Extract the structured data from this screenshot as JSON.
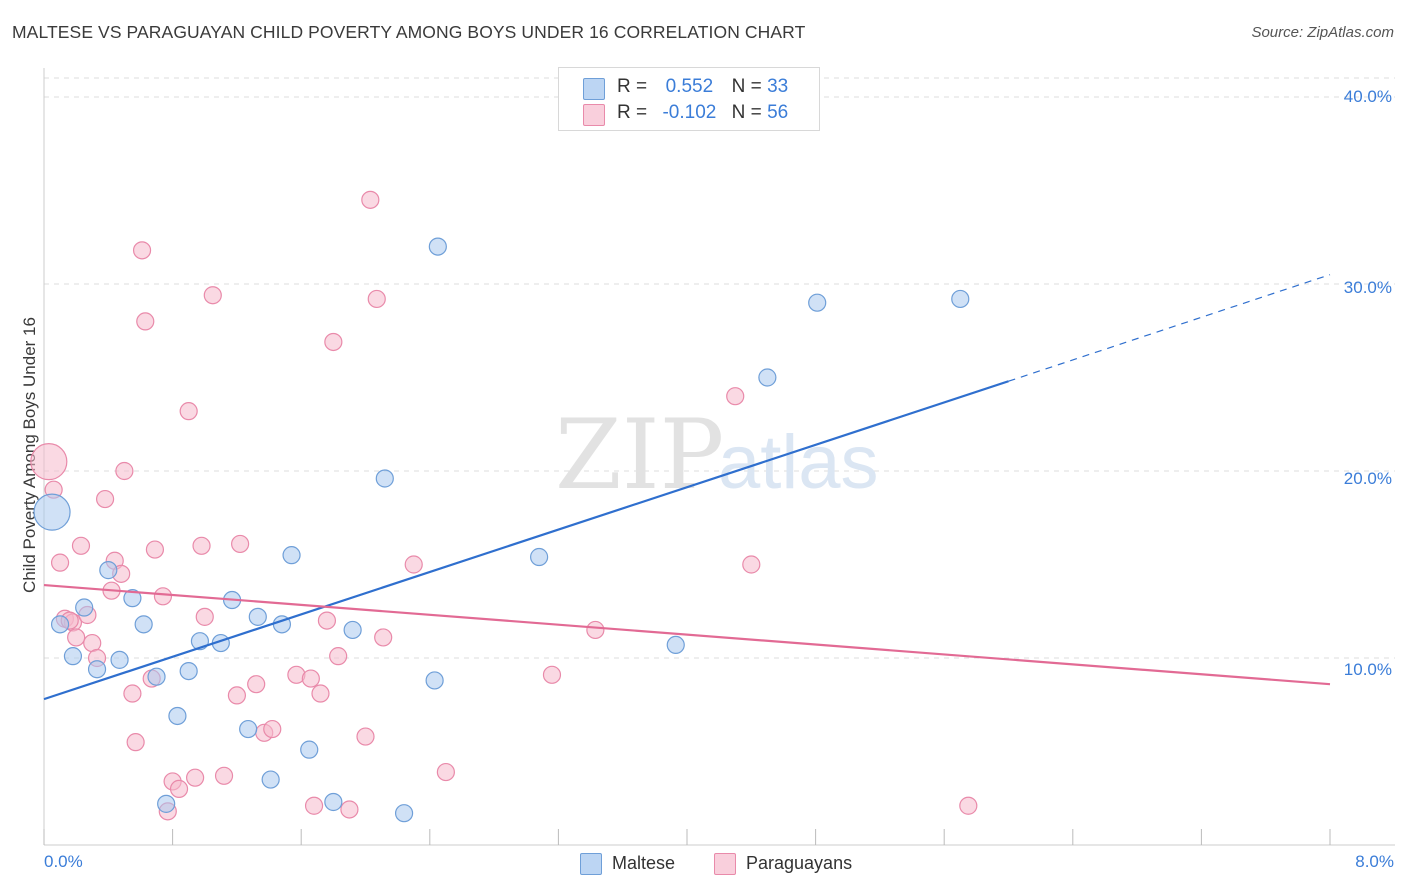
{
  "title": "MALTESE VS PARAGUAYAN CHILD POVERTY AMONG BOYS UNDER 16 CORRELATION CHART",
  "source": "Source: ZipAtlas.com",
  "watermark": {
    "zip": "ZIP",
    "atlas": "atlas"
  },
  "legend_top": {
    "r_label": "R =",
    "n_label": "N =",
    "rows": [
      {
        "name": "Maltese",
        "r": "0.552",
        "n": "33"
      },
      {
        "name": "Paraguayans",
        "r": "-0.102",
        "n": "56"
      }
    ]
  },
  "legend_bottom": [
    {
      "label": "Maltese"
    },
    {
      "label": "Paraguayans"
    }
  ],
  "colors": {
    "maltese_fill": "#a9c8ef",
    "maltese_stroke": "#6f9fd8",
    "maltese_line": "#2f6fce",
    "paraguayan_fill": "#f5b9cc",
    "paraguayan_stroke": "#e98aaa",
    "paraguayan_line": "#e26a94",
    "tick_text": "#3b7dd8",
    "grid": "#dddddd"
  },
  "chart_data": {
    "type": "scatter",
    "title": "MALTESE VS PARAGUAYAN CHILD POVERTY AMONG BOYS UNDER 16 CORRELATION CHART",
    "xlabel": "",
    "ylabel": "Child Poverty Among Boys Under 16",
    "xlim": [
      0,
      8.0
    ],
    "ylim": [
      0,
      40.0
    ],
    "x_tick_labels": [
      "0.0%",
      "8.0%"
    ],
    "y_ticks": [
      10,
      20,
      30,
      40
    ],
    "y_tick_labels": [
      "10.0%",
      "20.0%",
      "30.0%",
      "40.0%"
    ],
    "grid": true,
    "legend": "top-center",
    "series": [
      {
        "name": "Maltese",
        "R": 0.552,
        "N": 33,
        "trend": {
          "x0": 0.0,
          "y0": 7.8,
          "x1": 6.0,
          "y1": 24.8,
          "dash_to_x": 8.0,
          "dash_to_y": 30.5
        },
        "points": [
          {
            "x": 0.05,
            "y": 17.8,
            "big": true
          },
          {
            "x": 0.1,
            "y": 11.8
          },
          {
            "x": 0.18,
            "y": 10.1
          },
          {
            "x": 0.25,
            "y": 12.7
          },
          {
            "x": 0.33,
            "y": 9.4
          },
          {
            "x": 0.4,
            "y": 14.7
          },
          {
            "x": 0.47,
            "y": 9.9
          },
          {
            "x": 0.55,
            "y": 13.2
          },
          {
            "x": 0.62,
            "y": 11.8
          },
          {
            "x": 0.7,
            "y": 9.0
          },
          {
            "x": 0.76,
            "y": 2.2
          },
          {
            "x": 0.83,
            "y": 6.9
          },
          {
            "x": 0.9,
            "y": 9.3
          },
          {
            "x": 0.97,
            "y": 10.9
          },
          {
            "x": 1.1,
            "y": 10.8
          },
          {
            "x": 1.17,
            "y": 13.1
          },
          {
            "x": 1.27,
            "y": 6.2
          },
          {
            "x": 1.33,
            "y": 12.2
          },
          {
            "x": 1.41,
            "y": 3.5
          },
          {
            "x": 1.48,
            "y": 11.8
          },
          {
            "x": 1.54,
            "y": 15.5
          },
          {
            "x": 1.65,
            "y": 5.1
          },
          {
            "x": 1.8,
            "y": 2.3
          },
          {
            "x": 1.92,
            "y": 11.5
          },
          {
            "x": 2.12,
            "y": 19.6
          },
          {
            "x": 2.24,
            "y": 1.7
          },
          {
            "x": 2.43,
            "y": 8.8
          },
          {
            "x": 2.45,
            "y": 32.0
          },
          {
            "x": 3.08,
            "y": 15.4
          },
          {
            "x": 3.93,
            "y": 10.7
          },
          {
            "x": 4.5,
            "y": 25.0
          },
          {
            "x": 4.81,
            "y": 29.0
          },
          {
            "x": 5.7,
            "y": 29.2
          }
        ]
      },
      {
        "name": "Paraguayans",
        "R": -0.102,
        "N": 56,
        "trend": {
          "x0": 0.0,
          "y0": 13.9,
          "x1": 8.0,
          "y1": 8.6
        },
        "points": [
          {
            "x": 0.03,
            "y": 20.5,
            "big": true
          },
          {
            "x": 0.06,
            "y": 19.0
          },
          {
            "x": 0.1,
            "y": 15.1
          },
          {
            "x": 0.13,
            "y": 12.1
          },
          {
            "x": 0.18,
            "y": 11.9
          },
          {
            "x": 0.2,
            "y": 11.1
          },
          {
            "x": 0.23,
            "y": 16.0
          },
          {
            "x": 0.27,
            "y": 12.3
          },
          {
            "x": 0.3,
            "y": 10.8
          },
          {
            "x": 0.33,
            "y": 10.0
          },
          {
            "x": 0.38,
            "y": 18.5
          },
          {
            "x": 0.42,
            "y": 13.6
          },
          {
            "x": 0.44,
            "y": 15.2
          },
          {
            "x": 0.48,
            "y": 14.5
          },
          {
            "x": 0.5,
            "y": 20.0
          },
          {
            "x": 0.55,
            "y": 8.1
          },
          {
            "x": 0.57,
            "y": 5.5
          },
          {
            "x": 0.61,
            "y": 31.8
          },
          {
            "x": 0.63,
            "y": 28.0
          },
          {
            "x": 0.67,
            "y": 8.9
          },
          {
            "x": 0.69,
            "y": 15.8
          },
          {
            "x": 0.74,
            "y": 13.3
          },
          {
            "x": 0.77,
            "y": 1.8
          },
          {
            "x": 0.8,
            "y": 3.4
          },
          {
            "x": 0.84,
            "y": 3.0
          },
          {
            "x": 0.9,
            "y": 23.2
          },
          {
            "x": 0.94,
            "y": 3.6
          },
          {
            "x": 0.98,
            "y": 16.0
          },
          {
            "x": 1.0,
            "y": 12.2
          },
          {
            "x": 1.05,
            "y": 29.4
          },
          {
            "x": 1.12,
            "y": 3.7
          },
          {
            "x": 1.2,
            "y": 8.0
          },
          {
            "x": 1.22,
            "y": 16.1
          },
          {
            "x": 1.32,
            "y": 8.6
          },
          {
            "x": 1.37,
            "y": 6.0
          },
          {
            "x": 1.42,
            "y": 6.2
          },
          {
            "x": 1.57,
            "y": 9.1
          },
          {
            "x": 1.66,
            "y": 8.9
          },
          {
            "x": 1.68,
            "y": 2.1
          },
          {
            "x": 1.72,
            "y": 8.1
          },
          {
            "x": 1.76,
            "y": 12.0
          },
          {
            "x": 1.8,
            "y": 26.9
          },
          {
            "x": 1.83,
            "y": 10.1
          },
          {
            "x": 1.9,
            "y": 1.9
          },
          {
            "x": 2.0,
            "y": 5.8
          },
          {
            "x": 2.03,
            "y": 34.5
          },
          {
            "x": 2.07,
            "y": 29.2
          },
          {
            "x": 2.11,
            "y": 11.1
          },
          {
            "x": 2.3,
            "y": 15.0
          },
          {
            "x": 2.5,
            "y": 3.9
          },
          {
            "x": 3.16,
            "y": 9.1
          },
          {
            "x": 3.43,
            "y": 11.5
          },
          {
            "x": 4.3,
            "y": 24.0
          },
          {
            "x": 4.4,
            "y": 15.0
          },
          {
            "x": 5.75,
            "y": 2.1
          },
          {
            "x": 0.16,
            "y": 12.0
          }
        ]
      }
    ]
  }
}
